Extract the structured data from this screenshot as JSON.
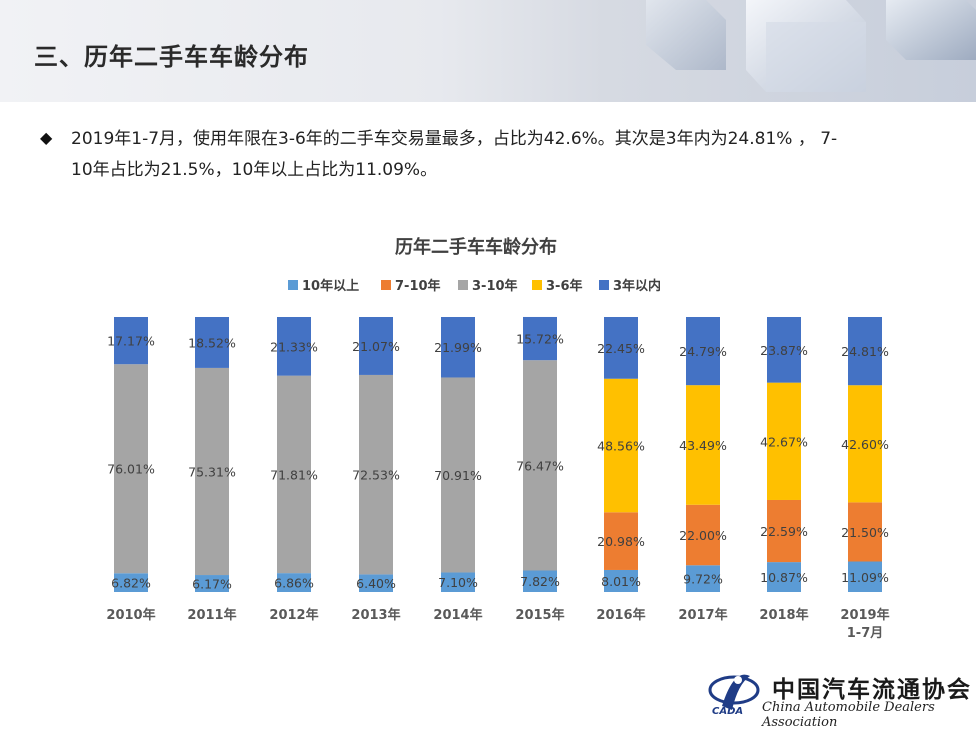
{
  "header": {
    "title": "三、历年二手车车龄分布"
  },
  "description": {
    "line1": "2019年1-7月，使用年限在3-6年的二手车交易量最多，占比为42.6%。其次是3年内为24.81% ， 7-",
    "line2": "10年占比为21.5%，10年以上占比为11.09%。"
  },
  "logo": {
    "name": "中国汽车流通协会",
    "english": "China Automobile Dealers Association",
    "abbr": "CADA"
  },
  "colors": {
    "over10": "#5b9bd5",
    "y7to10": "#ed7d31",
    "y3to10": "#a5a5a5",
    "y3to6": "#ffc000",
    "within3": "#4472c4"
  },
  "chart_data": {
    "type": "bar",
    "stacked": true,
    "title": "历年二手车车龄分布",
    "legend_position": "top",
    "categories": [
      "2010年",
      "2011年",
      "2012年",
      "2013年",
      "2014年",
      "2015年",
      "2016年",
      "2017年",
      "2018年",
      "2019年\n1-7月"
    ],
    "series": [
      {
        "name": "10年以上",
        "color": "#5b9bd5",
        "values": [
          6.82,
          6.17,
          6.86,
          6.4,
          7.1,
          7.82,
          8.01,
          9.72,
          10.87,
          11.09
        ],
        "labels": [
          "6.82%",
          "6.17%",
          "6.86%",
          "6.40%",
          "7.10%",
          "7.82%",
          "8.01%",
          "9.72%",
          "10.87%",
          "11.09%"
        ]
      },
      {
        "name": "7-10年",
        "color": "#ed7d31",
        "values": [
          null,
          null,
          null,
          null,
          null,
          null,
          20.98,
          22.0,
          22.59,
          21.5
        ],
        "labels": [
          "",
          "",
          "",
          "",
          "",
          "",
          "20.98%",
          "22.00%",
          "22.59%",
          "21.50%"
        ]
      },
      {
        "name": "3-10年",
        "color": "#a5a5a5",
        "values": [
          76.01,
          75.31,
          71.81,
          72.53,
          70.91,
          76.47,
          null,
          null,
          null,
          null
        ],
        "labels": [
          "76.01%",
          "75.31%",
          "71.81%",
          "72.53%",
          "70.91%",
          "76.47%",
          "",
          "",
          "",
          ""
        ]
      },
      {
        "name": "3-6年",
        "color": "#ffc000",
        "values": [
          null,
          null,
          null,
          null,
          null,
          null,
          48.56,
          43.49,
          42.67,
          42.6
        ],
        "labels": [
          "",
          "",
          "",
          "",
          "",
          "",
          "48.56%",
          "43.49%",
          "42.67%",
          "42.60%"
        ]
      },
      {
        "name": "3年以内",
        "color": "#4472c4",
        "values": [
          17.17,
          18.52,
          21.33,
          21.07,
          21.99,
          15.72,
          22.45,
          24.79,
          23.87,
          24.81
        ],
        "labels": [
          "17.17%",
          "18.52%",
          "21.33%",
          "21.07%",
          "21.99%",
          "15.72%",
          "22.45%",
          "24.79%",
          "23.87%",
          "24.81%"
        ]
      }
    ]
  }
}
